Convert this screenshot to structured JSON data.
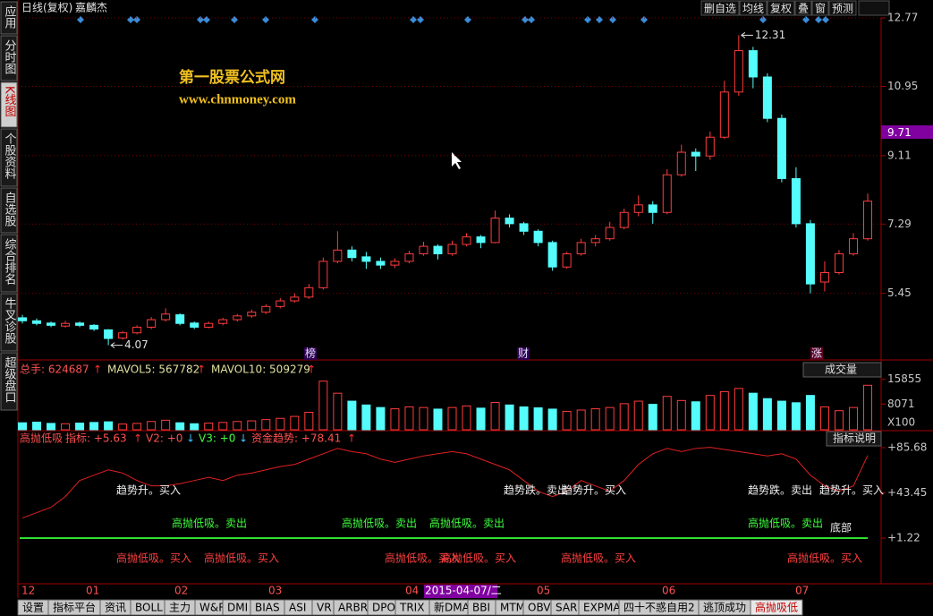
{
  "window": {
    "title": "日线(复权)",
    "stock": "嘉麟杰",
    "buttons": [
      "删自选",
      "均线",
      "复权",
      "叠",
      "窗",
      "预测"
    ]
  },
  "sidebar": [
    "应用",
    "分时图",
    "K线图",
    "个股资料",
    "自选股",
    "综合排名",
    "牛叉诊股",
    "超级盘口"
  ],
  "watermark": [
    "第一股票公式网",
    "www.chnmoney.com"
  ],
  "chart_data": [
    {
      "type": "candlestick",
      "open": [
        4.8,
        4.72,
        4.66,
        4.58,
        4.66,
        4.6,
        4.48,
        4.26,
        4.4,
        4.55,
        4.75,
        4.88,
        4.66,
        4.55,
        4.65,
        4.75,
        4.85,
        4.95,
        5.1,
        5.25,
        5.35,
        5.6,
        6.3,
        6.6,
        6.42,
        6.3,
        6.2,
        6.3,
        6.5,
        6.7,
        6.5,
        6.75,
        6.95,
        6.8,
        7.45,
        7.3,
        7.1,
        6.8,
        6.15,
        6.5,
        6.8,
        6.9,
        7.2,
        7.6,
        7.8,
        7.6,
        8.6,
        9.2,
        9.1,
        9.6,
        10.8,
        11.9,
        11.2,
        10.1,
        8.5,
        7.3,
        5.75,
        6.0,
        6.5,
        6.9
      ],
      "close": [
        4.72,
        4.65,
        4.6,
        4.65,
        4.6,
        4.5,
        4.25,
        4.4,
        4.55,
        4.75,
        4.9,
        4.65,
        4.55,
        4.65,
        4.75,
        4.85,
        4.95,
        5.1,
        5.25,
        5.35,
        5.6,
        6.3,
        6.6,
        6.4,
        6.3,
        6.2,
        6.3,
        6.5,
        6.7,
        6.5,
        6.75,
        6.95,
        6.8,
        7.45,
        7.3,
        7.1,
        6.8,
        6.15,
        6.5,
        6.8,
        6.9,
        7.2,
        7.6,
        7.8,
        7.6,
        8.6,
        9.2,
        9.1,
        9.6,
        10.8,
        11.9,
        11.2,
        10.1,
        8.5,
        7.3,
        5.7,
        6.0,
        6.5,
        6.9,
        7.9
      ],
      "high": [
        4.88,
        4.78,
        4.7,
        4.72,
        4.7,
        4.63,
        4.5,
        4.45,
        4.6,
        4.82,
        5.05,
        4.92,
        4.7,
        4.7,
        4.8,
        4.9,
        5.02,
        5.16,
        5.32,
        5.45,
        5.7,
        6.4,
        7.1,
        6.7,
        6.55,
        6.4,
        6.38,
        6.58,
        6.82,
        6.75,
        6.85,
        7.05,
        7.0,
        7.65,
        7.55,
        7.35,
        7.15,
        6.85,
        6.55,
        6.9,
        7.0,
        7.35,
        7.7,
        8.05,
        7.9,
        8.75,
        9.4,
        9.3,
        9.75,
        11.1,
        12.31,
        12.0,
        11.3,
        10.2,
        8.8,
        7.4,
        6.3,
        6.6,
        7.05,
        8.1
      ],
      "low": [
        4.65,
        4.6,
        4.55,
        4.54,
        4.55,
        4.45,
        4.07,
        4.22,
        4.36,
        4.5,
        4.7,
        4.6,
        4.5,
        4.52,
        4.6,
        4.7,
        4.8,
        4.9,
        5.05,
        5.2,
        5.3,
        5.55,
        6.25,
        6.3,
        6.1,
        6.1,
        6.12,
        6.25,
        6.45,
        6.35,
        6.45,
        6.7,
        6.65,
        6.78,
        7.2,
        7.0,
        6.7,
        6.05,
        6.1,
        6.45,
        6.7,
        6.85,
        7.15,
        7.5,
        7.3,
        7.55,
        8.55,
        8.7,
        9.0,
        9.55,
        10.7,
        10.9,
        10.0,
        8.4,
        7.2,
        5.45,
        5.5,
        5.95,
        6.45,
        6.85
      ],
      "up_color": "#ff3c3c",
      "down_color": "#54fcfc",
      "ylim": [
        3.68,
        12.77
      ],
      "yticks": [
        5.45,
        7.29,
        9.11,
        10.95,
        12.77
      ],
      "grid": true,
      "last_price": 9.71,
      "max": 12.31,
      "min": 4.07,
      "markers": [
        "榜",
        "财",
        "涨"
      ]
    },
    {
      "type": "volume",
      "header": [
        {
          "text": "总手: 624687",
          "arrow": "↑"
        },
        {
          "text": "MAVOL5: 567782",
          "arrow": "↑"
        },
        {
          "text": "MAVOL10: 509279",
          "arrow": "↑"
        }
      ],
      "selector": "成交量",
      "unit": "X100",
      "values": [
        2200,
        2400,
        2000,
        1900,
        2100,
        2300,
        2500,
        1800,
        2000,
        2600,
        3000,
        2200,
        1900,
        2100,
        2300,
        2600,
        2800,
        3200,
        3600,
        4200,
        5500,
        15300,
        11500,
        9000,
        7800,
        7000,
        6600,
        7200,
        7000,
        6500,
        7000,
        7500,
        6800,
        8600,
        7800,
        7200,
        6900,
        6500,
        5800,
        6200,
        6600,
        7000,
        8200,
        9000,
        8000,
        10500,
        9200,
        8800,
        10800,
        12000,
        13000,
        11500,
        9800,
        9000,
        8500,
        10800,
        7200,
        6000,
        7000,
        14000
      ],
      "ylim": [
        0,
        16900
      ],
      "yticks": [
        8071,
        15855
      ]
    },
    {
      "type": "line",
      "header": [
        {
          "text": "高抛低吸",
          "color": "#ff5050"
        },
        {
          "text": "指标: +5.63",
          "arrow": "↑",
          "color": "#ff5050"
        },
        {
          "text": "V2: +0",
          "arrow": "↓",
          "color": "#ff5050"
        },
        {
          "text": "V3: +0",
          "arrow": "↓",
          "color": "#40ff40"
        },
        {
          "text": "资金趋势: +78.41",
          "arrow": "↑",
          "color": "#ff5050"
        }
      ],
      "help": "指标说明",
      "series": [
        {
          "name": "资金趋势",
          "color": "#e02020",
          "values": [
            20,
            25,
            30,
            40,
            55,
            60,
            65,
            62,
            55,
            50,
            50,
            52,
            55,
            58,
            55,
            60,
            62,
            65,
            68,
            70,
            75,
            80,
            85,
            82,
            80,
            75,
            72,
            75,
            78,
            80,
            82,
            80,
            75,
            70,
            65,
            55,
            45,
            40,
            45,
            55,
            50,
            45,
            55,
            70,
            80,
            85,
            82,
            85,
            86,
            84,
            82,
            80,
            78,
            80,
            75,
            60,
            50,
            45,
            50,
            78.41
          ]
        }
      ],
      "ylim": [
        -41.4,
        94.04
      ],
      "yticks": [
        {
          "value": 1.22,
          "label": "+1.22"
        },
        {
          "value": 43.45,
          "label": "+43.45"
        },
        {
          "value": 85.68,
          "label": "+85.68"
        }
      ],
      "annotations": [
        "趋势升。买入",
        "高抛低吸。卖出",
        "高抛低吸。买入",
        "高抛低吸。买入",
        "高抛低吸。卖出",
        "高抛低吸。卖出",
        "高抛低吸。买入",
        "高抛低吸。买入",
        "趋势跌。卖出",
        "趋势升。买入",
        "高抛低吸。买入",
        "趋势跌。卖出",
        "趋势升。买入",
        "高抛低吸。卖出",
        "底部",
        "高抛低吸。买入"
      ]
    }
  ],
  "x_axis_labels": [
    "12",
    "01",
    "02",
    "03",
    "04",
    "2015-04-07/二",
    "05",
    "06",
    "07"
  ],
  "tabs": [
    "设置",
    "指标平台",
    "资讯",
    "BOLL",
    "主力",
    "W&R",
    "DMI",
    "BIAS",
    "ASI",
    "VR",
    "ARBR",
    "DPO",
    "TRIX",
    "新DMA",
    "BBI",
    "MTM",
    "OBV",
    "SAR",
    "EXPMA",
    "四十不惑自用2",
    "逃顶成功",
    "高抛吸低"
  ]
}
